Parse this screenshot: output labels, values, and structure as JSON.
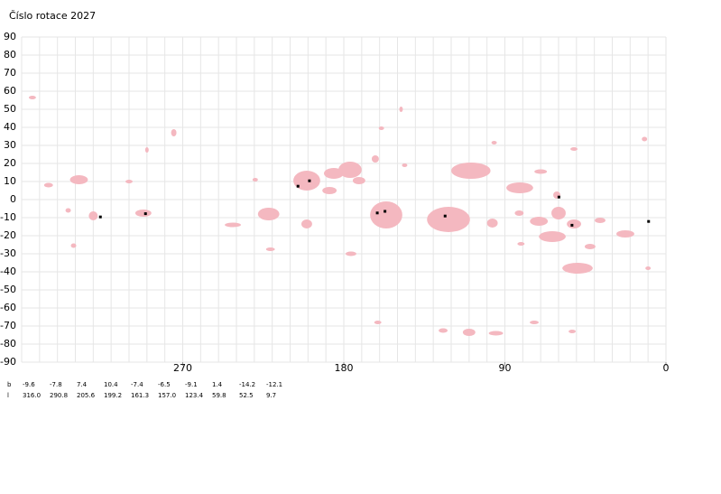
{
  "chart_data": {
    "type": "synoptic-map",
    "title": "Číslo rotace  2027",
    "xlim": [
      360,
      0
    ],
    "xticks": [
      270,
      180,
      90,
      0
    ],
    "xgrid_step": 10,
    "ylim": [
      -90,
      90
    ],
    "yticks": [
      90,
      80,
      70,
      60,
      50,
      40,
      30,
      20,
      10,
      0,
      -10,
      -20,
      -30,
      -40,
      -50,
      -60,
      -70,
      -80,
      -90
    ],
    "grid": true,
    "region_color": "#f4b8c0",
    "spot_color": "#000000",
    "regions": [
      {
        "lon": 354,
        "lat": 56.5,
        "w": 4,
        "h": 2
      },
      {
        "lon": 345,
        "lat": 8,
        "w": 5,
        "h": 2.5
      },
      {
        "lon": 328,
        "lat": 11,
        "w": 10,
        "h": 5
      },
      {
        "lon": 334,
        "lat": -6,
        "w": 3,
        "h": 2.5
      },
      {
        "lon": 320,
        "lat": -9,
        "w": 5,
        "h": 5
      },
      {
        "lon": 331,
        "lat": -25.5,
        "w": 3,
        "h": 2.5
      },
      {
        "lon": 300,
        "lat": 10,
        "w": 4,
        "h": 2
      },
      {
        "lon": 292,
        "lat": -7.5,
        "w": 9,
        "h": 4
      },
      {
        "lon": 290,
        "lat": 27.5,
        "w": 2,
        "h": 3
      },
      {
        "lon": 275,
        "lat": 37,
        "w": 3,
        "h": 4
      },
      {
        "lon": 229.5,
        "lat": 11,
        "w": 3,
        "h": 2
      },
      {
        "lon": 242,
        "lat": -14,
        "w": 9,
        "h": 2.5
      },
      {
        "lon": 222,
        "lat": -8,
        "w": 12,
        "h": 7
      },
      {
        "lon": 221,
        "lat": -27.5,
        "w": 5,
        "h": 2
      },
      {
        "lon": 200.7,
        "lat": 10.5,
        "w": 15,
        "h": 11
      },
      {
        "lon": 185.6,
        "lat": 14.5,
        "w": 11,
        "h": 6
      },
      {
        "lon": 176.5,
        "lat": 16.5,
        "w": 13,
        "h": 9
      },
      {
        "lon": 188,
        "lat": 5,
        "w": 8,
        "h": 4
      },
      {
        "lon": 171.5,
        "lat": 10.5,
        "w": 7,
        "h": 4
      },
      {
        "lon": 200.7,
        "lat": -13.5,
        "w": 6,
        "h": 5
      },
      {
        "lon": 156.3,
        "lat": -8.5,
        "w": 18,
        "h": 15
      },
      {
        "lon": 162.4,
        "lat": 22.5,
        "w": 4,
        "h": 4
      },
      {
        "lon": 176,
        "lat": -30,
        "w": 6,
        "h": 2.5
      },
      {
        "lon": 161,
        "lat": -68,
        "w": 4,
        "h": 2
      },
      {
        "lon": 159,
        "lat": 39.5,
        "w": 3,
        "h": 2
      },
      {
        "lon": 148,
        "lat": 50,
        "w": 2,
        "h": 3
      },
      {
        "lon": 146,
        "lat": 19,
        "w": 3,
        "h": 2
      },
      {
        "lon": 121.5,
        "lat": -11,
        "w": 24,
        "h": 14
      },
      {
        "lon": 109,
        "lat": 16,
        "w": 22,
        "h": 9
      },
      {
        "lon": 97,
        "lat": -13,
        "w": 6,
        "h": 5
      },
      {
        "lon": 96,
        "lat": 31.5,
        "w": 3,
        "h": 2
      },
      {
        "lon": 124.5,
        "lat": -72.5,
        "w": 5,
        "h": 2.5
      },
      {
        "lon": 110,
        "lat": -73.5,
        "w": 7,
        "h": 4
      },
      {
        "lon": 95,
        "lat": -74,
        "w": 8,
        "h": 2.5
      },
      {
        "lon": 81.7,
        "lat": 6.5,
        "w": 15,
        "h": 6
      },
      {
        "lon": 70,
        "lat": 15.5,
        "w": 7,
        "h": 2.5
      },
      {
        "lon": 71,
        "lat": -12,
        "w": 10,
        "h": 5
      },
      {
        "lon": 82,
        "lat": -7.5,
        "w": 5,
        "h": 3
      },
      {
        "lon": 81,
        "lat": -24.5,
        "w": 4,
        "h": 2
      },
      {
        "lon": 60,
        "lat": -7.5,
        "w": 8,
        "h": 7
      },
      {
        "lon": 61,
        "lat": 2.5,
        "w": 4,
        "h": 4
      },
      {
        "lon": 63.5,
        "lat": -20.5,
        "w": 15,
        "h": 6
      },
      {
        "lon": 51.4,
        "lat": -13.5,
        "w": 8,
        "h": 5
      },
      {
        "lon": 49.4,
        "lat": -38,
        "w": 17,
        "h": 6
      },
      {
        "lon": 51.4,
        "lat": 28,
        "w": 4,
        "h": 2
      },
      {
        "lon": 42.4,
        "lat": -26,
        "w": 6,
        "h": 3
      },
      {
        "lon": 22.7,
        "lat": -19,
        "w": 10,
        "h": 4
      },
      {
        "lon": 36.8,
        "lat": -11.5,
        "w": 6,
        "h": 3
      },
      {
        "lon": 12,
        "lat": 33.5,
        "w": 3,
        "h": 2.5
      },
      {
        "lon": 10,
        "lat": -38,
        "w": 3,
        "h": 2
      },
      {
        "lon": 73.6,
        "lat": -68,
        "w": 5,
        "h": 2
      },
      {
        "lon": 52.4,
        "lat": -73,
        "w": 4,
        "h": 2
      }
    ],
    "spots": {
      "b_label": "b",
      "l_label": "l",
      "b": [
        {
          "value": -9.6,
          "label": "-9.6"
        },
        {
          "value": -7.8,
          "label": "-7.8"
        },
        {
          "value": 7.4,
          "label": "7.4"
        },
        {
          "value": 10.4,
          "label": "10.4"
        },
        {
          "value": -7.4,
          "label": "-7.4"
        },
        {
          "value": -6.5,
          "label": "-6.5"
        },
        {
          "value": -9.1,
          "label": "-9.1"
        },
        {
          "value": 1.4,
          "label": "1.4"
        },
        {
          "value": -14.2,
          "label": "-14.2"
        },
        {
          "value": -12.1,
          "label": "-12.1"
        }
      ],
      "l": [
        {
          "value": 316.0,
          "label": "316.0"
        },
        {
          "value": 290.8,
          "label": "290.8"
        },
        {
          "value": 205.6,
          "label": "205.6"
        },
        {
          "value": 199.2,
          "label": "199.2"
        },
        {
          "value": 161.3,
          "label": "161.3"
        },
        {
          "value": 157.0,
          "label": "157.0"
        },
        {
          "value": 123.4,
          "label": "123.4"
        },
        {
          "value": 59.8,
          "label": "59.8"
        },
        {
          "value": 52.5,
          "label": "52.5"
        },
        {
          "value": 9.7,
          "label": "9.7"
        }
      ]
    }
  }
}
